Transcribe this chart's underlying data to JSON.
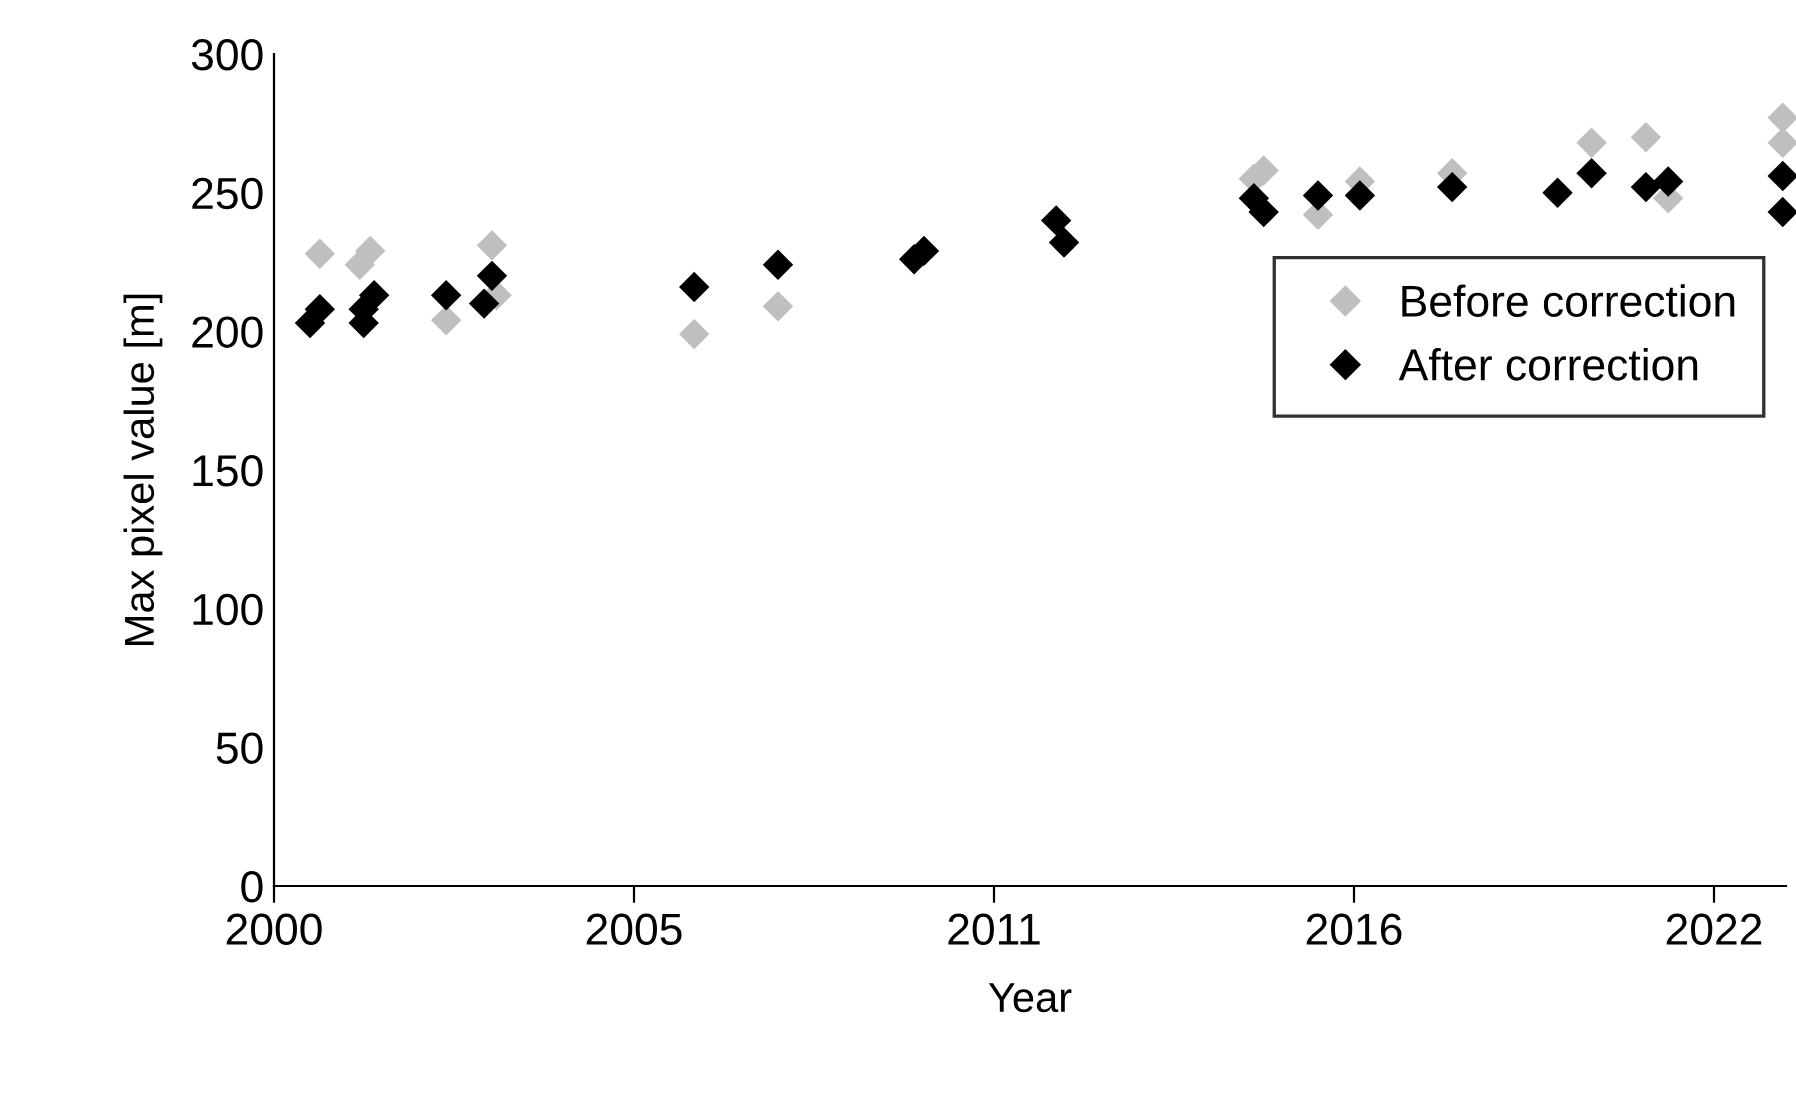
{
  "chart_data": {
    "type": "scatter",
    "xlabel": "Year",
    "ylabel": "Max pixel value [m]",
    "xlim": [
      2000,
      2023.1
    ],
    "xticks": [
      2000,
      {
        "value": 2005.5,
        "label": "2005"
      },
      2011,
      {
        "value": 2016.5,
        "label": "2016"
      },
      2022
    ],
    "ylim": [
      0,
      300
    ],
    "yticks": [
      0,
      50,
      100,
      150,
      200,
      250,
      300
    ],
    "grid": false,
    "legend": "right",
    "marker": "diamond",
    "series": [
      {
        "name": "Before correction",
        "color": "#bfbfbf",
        "x": [
          2000.7,
          2001.47,
          2001.31,
          2002.63,
          2003.33,
          2003.4,
          2006.42,
          2007.7,
          2015.12,
          2014.97,
          2015.95,
          2016.59,
          2018.0,
          2020.13,
          2020.96,
          2021.3,
          2023.05,
          2023.05
        ],
        "values": [
          228,
          229,
          224,
          204,
          231,
          213,
          199,
          209,
          258,
          255,
          242,
          254,
          257,
          268,
          270,
          248,
          277,
          268
        ]
      },
      {
        "name": "After correction",
        "color": "#000000",
        "x": [
          2000.7,
          2000.55,
          2001.53,
          2001.37,
          2001.37,
          2002.63,
          2003.33,
          2003.21,
          2006.42,
          2007.7,
          2009.93,
          2009.78,
          2011.95,
          2012.07,
          2014.97,
          2015.12,
          2015.95,
          2016.59,
          2018.0,
          2019.61,
          2020.13,
          2020.96,
          2021.3,
          2023.05,
          2023.05
        ],
        "values": [
          208,
          203,
          213,
          208,
          203,
          213,
          220,
          210,
          216,
          224,
          229,
          226,
          240,
          232,
          248,
          243,
          249,
          249,
          252,
          250,
          257,
          252,
          254,
          256,
          243
        ]
      }
    ]
  }
}
